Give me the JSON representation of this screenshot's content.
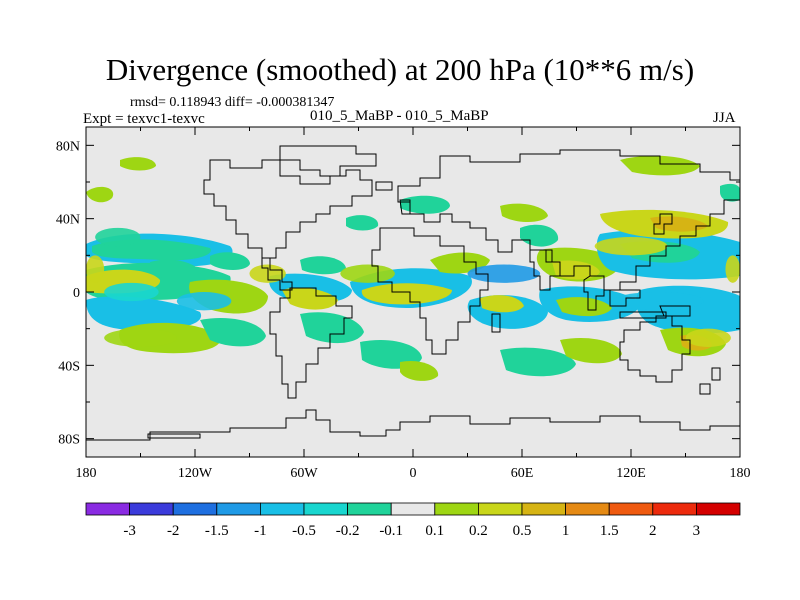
{
  "chart_data": {
    "type": "heatmap",
    "title": "Divergence (smoothed) at 200 hPa (10**6 m/s)",
    "stats": "rmsd= 0.118943 diff= -0.000381347",
    "experiment": "Expt = texvc1-texvc",
    "subtitle": "010_5_MaBP - 010_5_MaBP",
    "season": "JJA",
    "x_ticks": [
      "180",
      "120W",
      "60W",
      "0",
      "60E",
      "120E",
      "180"
    ],
    "y_ticks": [
      "80N",
      "40N",
      "0",
      "40S",
      "80S"
    ],
    "xlim": [
      -180,
      180
    ],
    "ylim": [
      -90,
      90
    ],
    "colorbar": {
      "labels": [
        "-3",
        "-2",
        "-1.5",
        "-1",
        "-0.5",
        "-0.2",
        "-0.1",
        "0.1",
        "0.2",
        "0.5",
        "1",
        "1.5",
        "2",
        "3"
      ],
      "colors": [
        "#8a2be2",
        "#3b3bdb",
        "#1e6fe0",
        "#1f9ae6",
        "#19bfe6",
        "#19d6cf",
        "#20d39a",
        "#e8e8e8",
        "#9ed613",
        "#c9d61a",
        "#d6b414",
        "#e58a14",
        "#ef5a10",
        "#ec2a0c",
        "#d40000"
      ]
    },
    "background_color": "#e8e8e8",
    "regions": [
      {
        "lon_min": 172,
        "lon_max": 180,
        "lat_min": 5,
        "lat_max": 20,
        "level": 9
      },
      {
        "lon_min": -180,
        "lon_max": -170,
        "lat_min": 5,
        "lat_max": 20,
        "level": 9
      },
      {
        "lon_min": -175,
        "lon_max": -150,
        "lat_min": 25,
        "lat_max": 35,
        "level": 6
      },
      {
        "lon_min": -170,
        "lon_max": -140,
        "lat_min": -5,
        "lat_max": 5,
        "level": 5
      },
      {
        "lon_min": -170,
        "lon_max": -130,
        "lat_min": -30,
        "lat_max": -20,
        "level": 8
      },
      {
        "lon_min": -130,
        "lon_max": -100,
        "lat_min": -10,
        "lat_max": 0,
        "level": 4
      },
      {
        "lon_min": -90,
        "lon_max": -70,
        "lat_min": 5,
        "lat_max": 15,
        "level": 9
      },
      {
        "lon_min": -40,
        "lon_max": -10,
        "lat_min": 5,
        "lat_max": 15,
        "level": 8
      },
      {
        "lon_min": 30,
        "lon_max": 70,
        "lat_min": 5,
        "lat_max": 15,
        "level": 3
      },
      {
        "lon_min": 100,
        "lon_max": 140,
        "lat_min": 20,
        "lat_max": 30,
        "level": 9
      },
      {
        "lon_min": 110,
        "lon_max": 160,
        "lat_min": -10,
        "lat_max": 0,
        "level": 4
      },
      {
        "lon_min": 150,
        "lon_max": 175,
        "lat_min": -30,
        "lat_max": -20,
        "level": 9
      }
    ]
  }
}
